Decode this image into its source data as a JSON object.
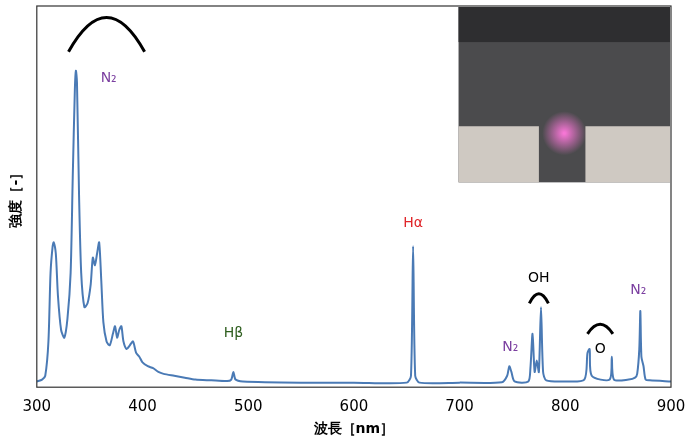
{
  "chart_data": {
    "type": "line",
    "xlabel": "波長［nm］",
    "ylabel": "強度［-］",
    "color": "#4a7ab5",
    "grid": false,
    "legend": "none",
    "tick_labels": "x",
    "xlim": [
      300,
      900
    ],
    "xticks": [
      300,
      400,
      500,
      600,
      700,
      800,
      900
    ],
    "ylim": [
      0,
      100
    ],
    "x": [
      300,
      305,
      308,
      311,
      313,
      315,
      316,
      318,
      320,
      323,
      326,
      329,
      332,
      334,
      336,
      337,
      338,
      340,
      342,
      345,
      348,
      351,
      353,
      355,
      357,
      359,
      361,
      363,
      366,
      369,
      372,
      374,
      376,
      378,
      380,
      382,
      385,
      388,
      391,
      394,
      397,
      400,
      405,
      410,
      415,
      420,
      430,
      440,
      450,
      465,
      480,
      484,
      486,
      488,
      495,
      550,
      600,
      650,
      654,
      656,
      658,
      662,
      700,
      740,
      745,
      747,
      749,
      752,
      765,
      767,
      769,
      771,
      773,
      775,
      777,
      779,
      782,
      800,
      818,
      821,
      823,
      825,
      842,
      844,
      846,
      860,
      866,
      868,
      870,
      871,
      872,
      874,
      876,
      880,
      900
    ],
    "values": [
      1.5,
      2,
      3,
      12,
      30,
      37,
      38,
      35,
      24,
      15,
      13,
      18,
      30,
      55,
      78,
      83,
      80,
      50,
      30,
      21,
      22,
      27,
      34,
      32,
      35,
      38,
      28,
      17,
      12,
      11,
      14,
      16,
      13,
      15,
      16,
      12,
      10,
      11,
      12,
      9,
      8,
      6.5,
      5.5,
      5,
      4,
      3.5,
      3,
      2.5,
      2,
      1.8,
      1.6,
      2,
      4,
      2,
      1.5,
      1.2,
      1.2,
      1.2,
      3,
      37,
      3,
      1.2,
      1.2,
      1.3,
      3,
      5.5,
      4,
      1.5,
      1.5,
      5,
      14,
      4,
      7,
      4,
      21,
      4,
      1.8,
      1.5,
      2,
      9,
      10,
      3,
      2,
      8,
      2,
      2,
      2.5,
      3.5,
      10,
      20,
      8,
      5.5,
      2,
      1.8,
      1.5
    ],
    "annotations": [
      {
        "text": "N₂",
        "color": "#7b3fa0"
      },
      {
        "text": "Hβ",
        "color": "#2e5e1e"
      },
      {
        "text": "Hα",
        "color": "#e0262a"
      },
      {
        "text": "N₂",
        "color": "#7b3fa0"
      },
      {
        "text": "OH",
        "color": "#000000"
      },
      {
        "text": "O",
        "color": "#000000"
      },
      {
        "text": "N₂",
        "color": "#7b3fa0"
      }
    ]
  }
}
